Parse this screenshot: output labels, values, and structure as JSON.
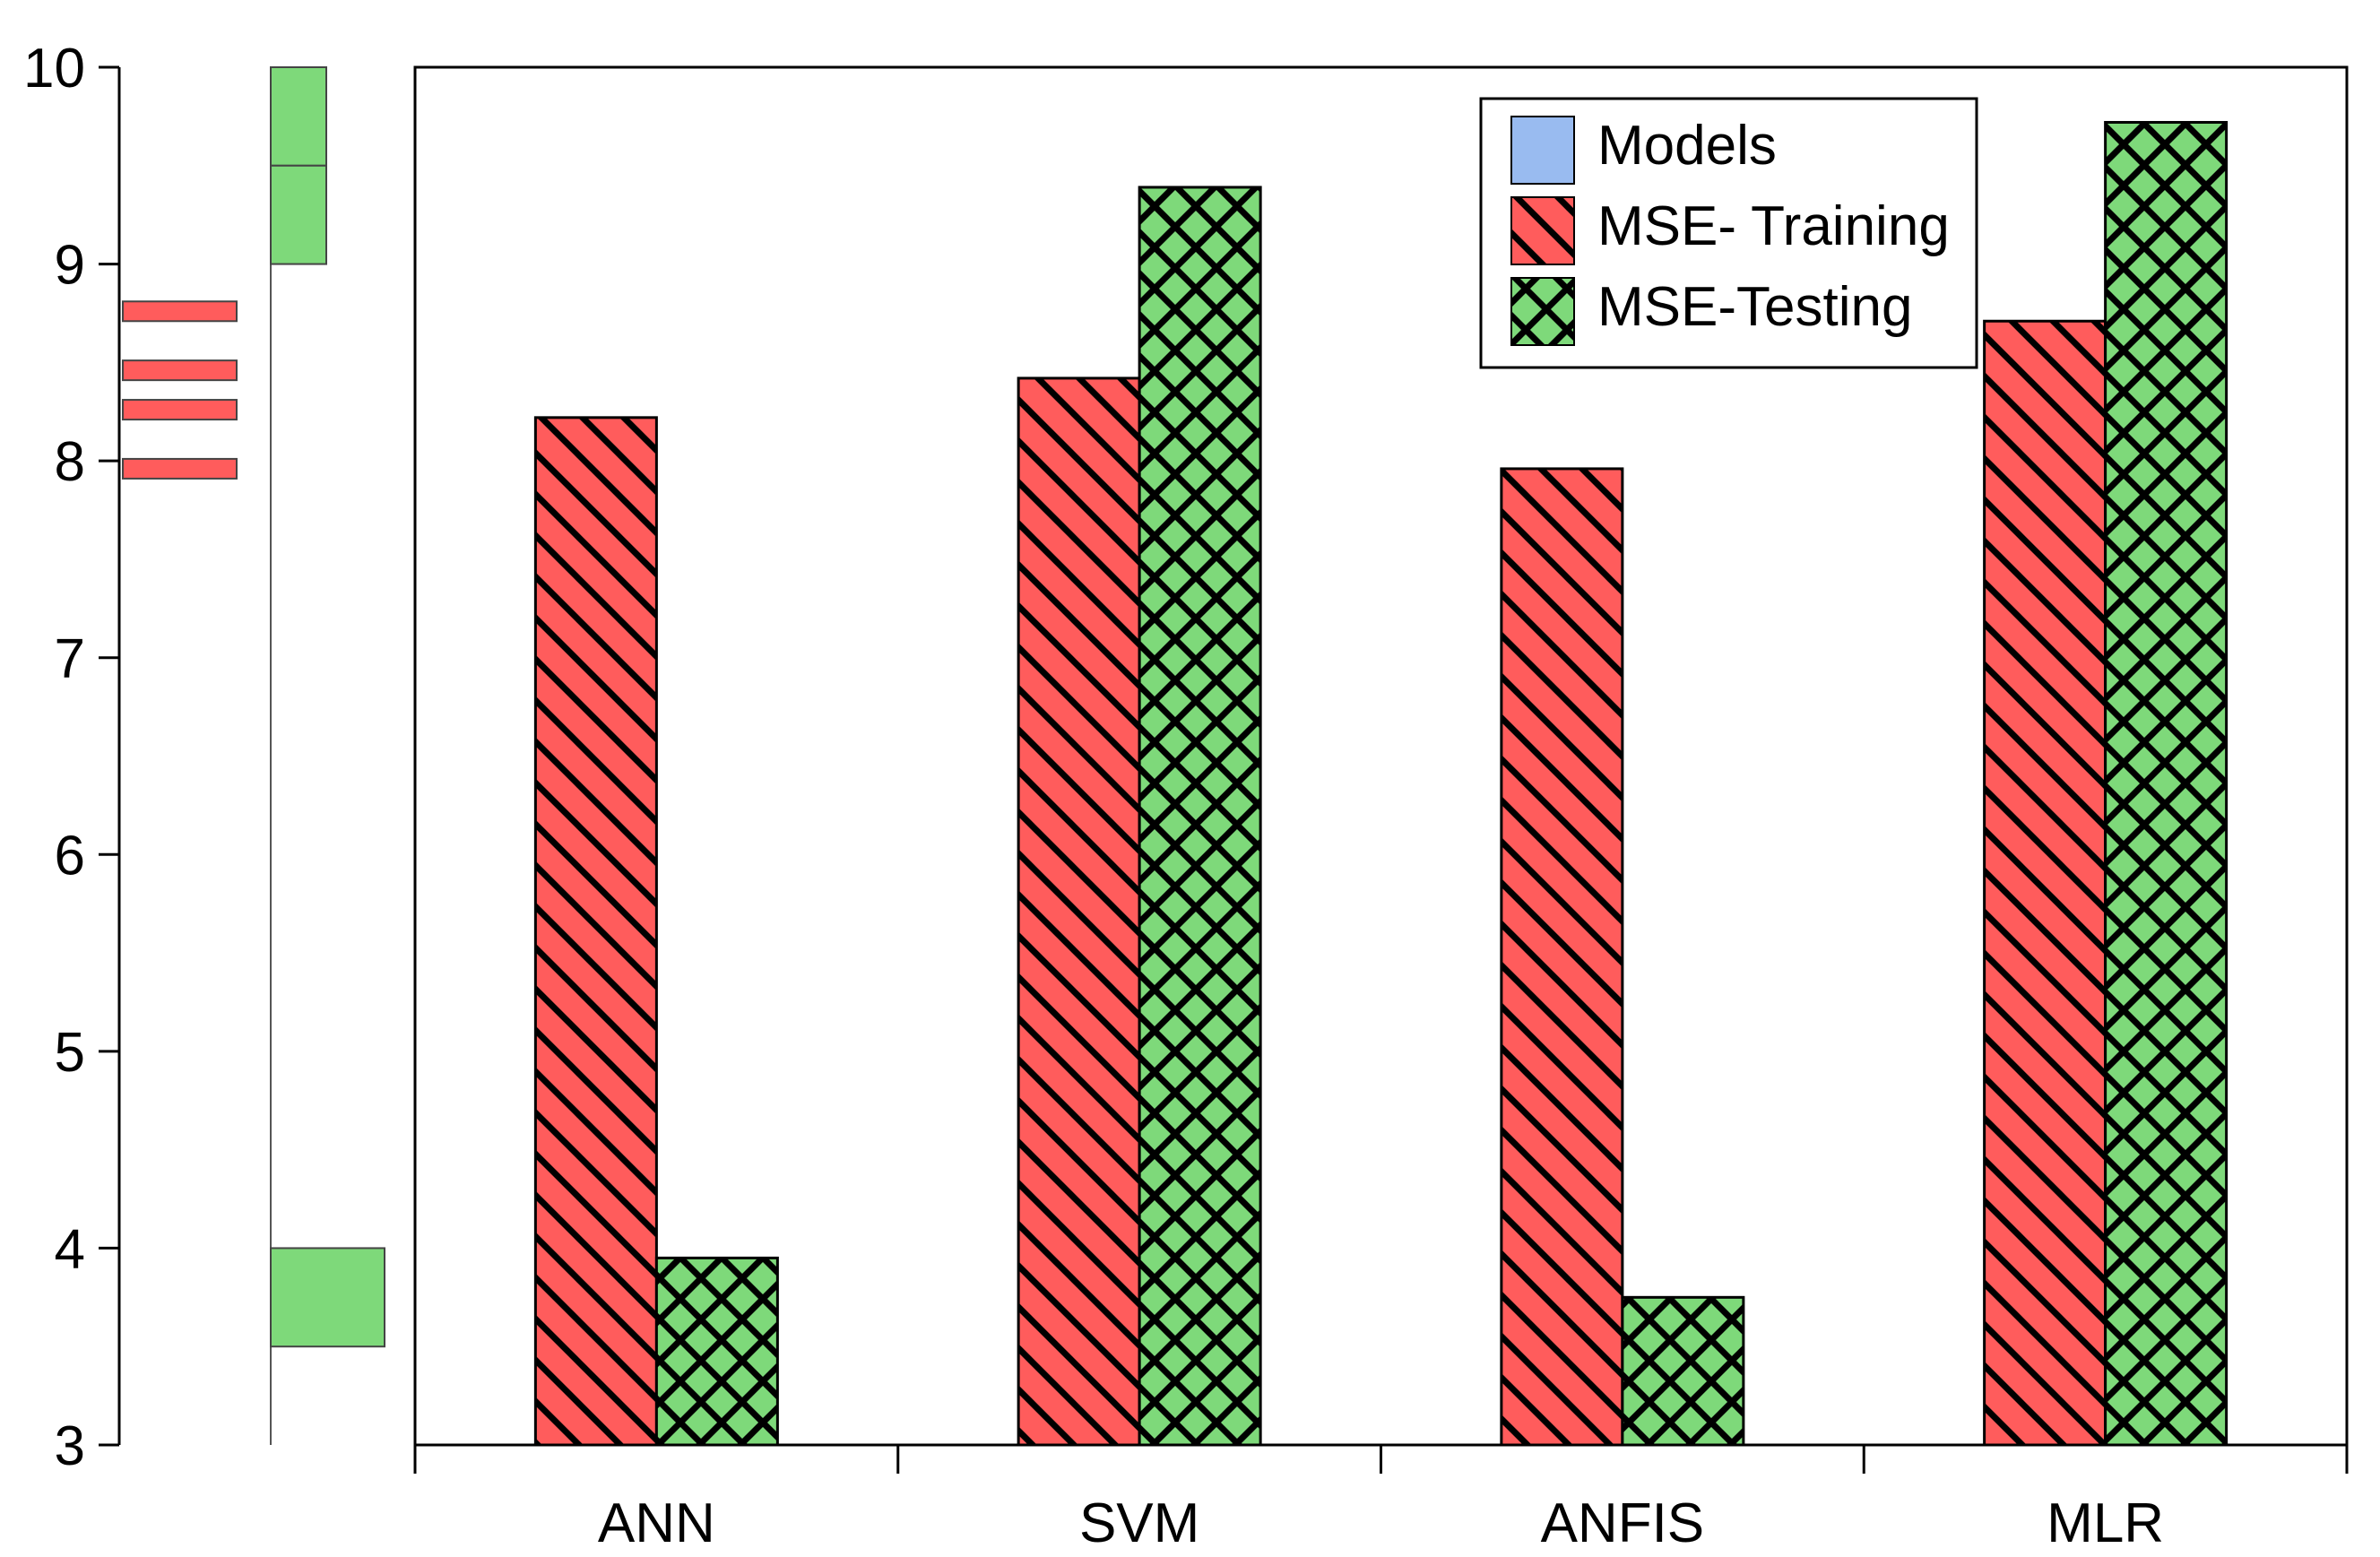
{
  "chart_data": {
    "type": "bar",
    "title": "",
    "xlabel": "",
    "ylabel": "",
    "ylim": [
      3,
      10
    ],
    "y_ticks": [
      "3",
      "4",
      "5",
      "6",
      "7",
      "8",
      "9",
      "10"
    ],
    "categories": [
      "ANN",
      "SVM",
      "ANFIS",
      "MLR"
    ],
    "series": [
      {
        "name": "Models",
        "values": [
          null,
          null,
          null,
          null
        ],
        "color": "#99bbf0"
      },
      {
        "name": "MSE- Training",
        "values": [
          8.22,
          8.42,
          7.96,
          8.71
        ],
        "color": "#ff5c5c",
        "pattern": "diagonal"
      },
      {
        "name": "MSE-Testing",
        "values": [
          3.95,
          9.39,
          3.75,
          9.72
        ],
        "color": "#7ed97a",
        "pattern": "crosshatch"
      }
    ],
    "legend": {
      "position": "top-right"
    },
    "side_strips": {
      "training_marks": [
        8.76,
        8.46,
        8.26,
        7.96
      ],
      "testing_segments": [
        [
          9.5,
          10.0
        ],
        [
          9.0,
          9.5
        ],
        [
          3.5,
          4.0
        ]
      ]
    }
  }
}
